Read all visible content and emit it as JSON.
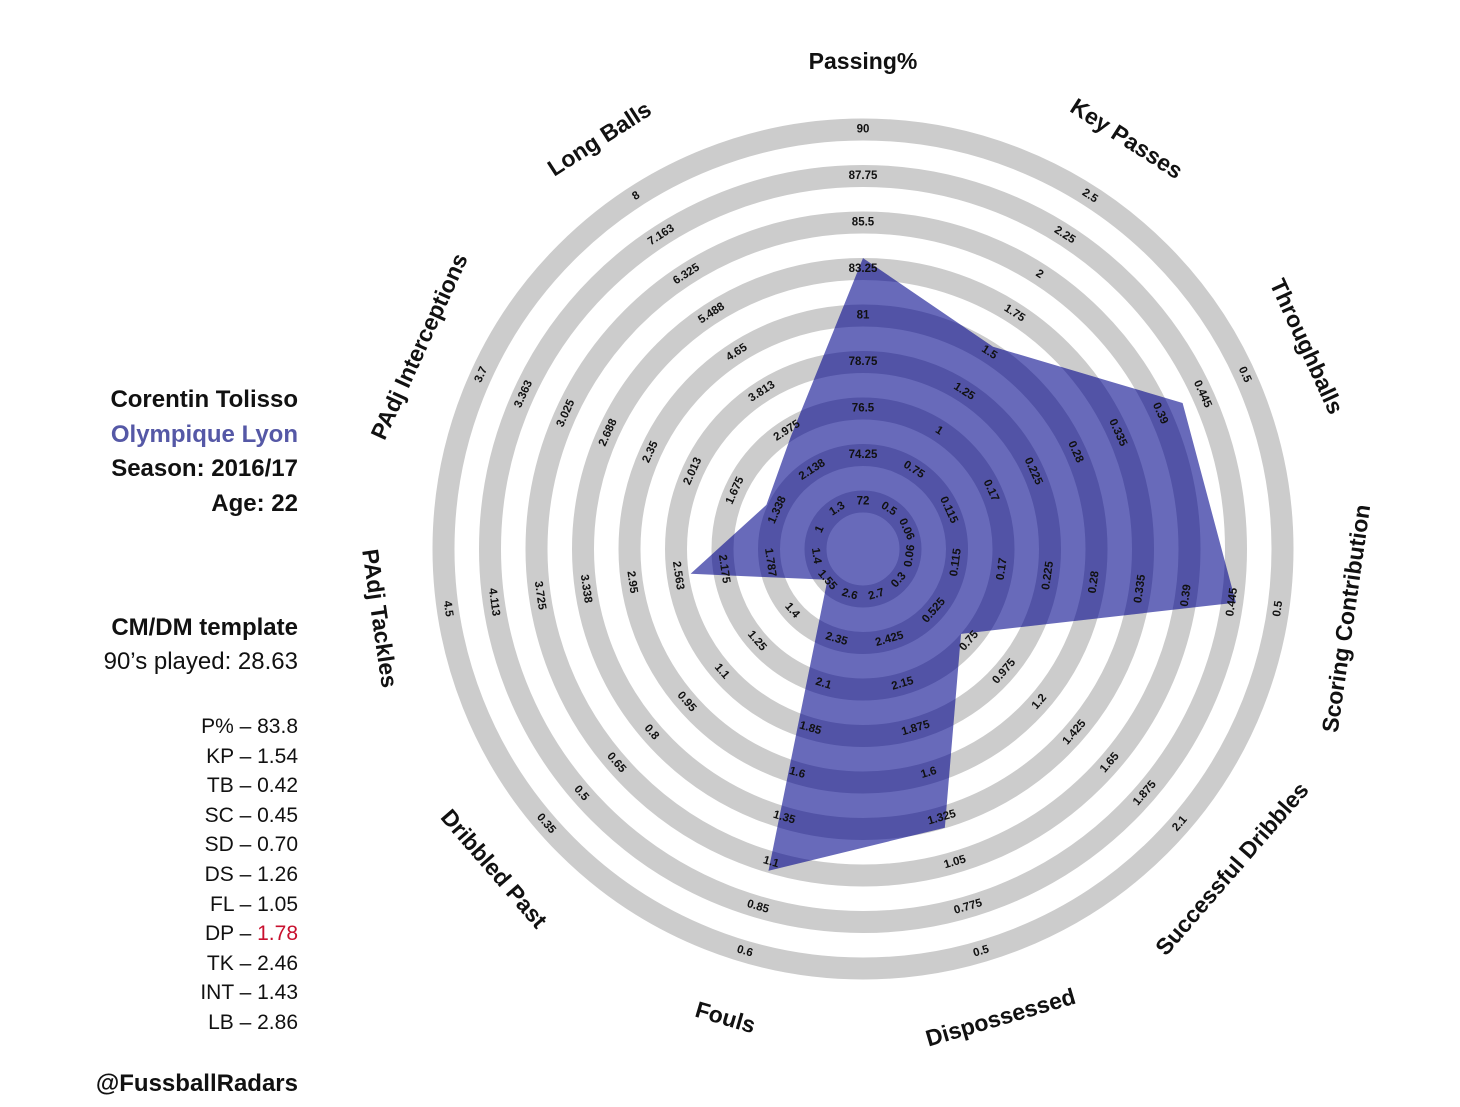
{
  "player": {
    "name": "Corentin Tolisso",
    "club": "Olympique Lyon",
    "season": "Season: 2016/17",
    "age": "Age: 22",
    "template": "CM/DM template",
    "played": "90’s played: 28.63",
    "handle": "@FussballRadars"
  },
  "stats": [
    {
      "code": "P%",
      "value": "83.8"
    },
    {
      "code": "KP",
      "value": "1.54"
    },
    {
      "code": "TB",
      "value": "0.42"
    },
    {
      "code": "SC",
      "value": "0.45"
    },
    {
      "code": "SD",
      "value": "0.70"
    },
    {
      "code": "DS",
      "value": "1.26"
    },
    {
      "code": "FL",
      "value": "1.05"
    },
    {
      "code": "DP",
      "value": "1.78",
      "highlight": true
    },
    {
      "code": "TK",
      "value": "2.46"
    },
    {
      "code": "INT",
      "value": "1.43"
    },
    {
      "code": "LB",
      "value": "2.86"
    }
  ],
  "colors": {
    "fill": "#4b4ead",
    "ring": "#cccccc",
    "club": "#5558a6",
    "highlight": "#c8102e"
  },
  "chart_data": {
    "type": "radar",
    "axes": [
      {
        "name": "Passing%",
        "ticks": [
          "72",
          "74.25",
          "76.5",
          "78.75",
          "81",
          "83.25",
          "85.5",
          "87.75",
          "90"
        ],
        "value": 83.8,
        "inverted": false
      },
      {
        "name": "Key Passes",
        "ticks": [
          "0.5",
          "0.75",
          "1",
          "1.25",
          "1.5",
          "1.75",
          "2",
          "2.25",
          "2.5"
        ],
        "value": 1.54,
        "inverted": false
      },
      {
        "name": "Throughballs",
        "ticks": [
          "0.06",
          "0.115",
          "0.17",
          "0.225",
          "0.28",
          "0.335",
          "0.39",
          "0.445",
          "0.5"
        ],
        "value": 0.42,
        "inverted": false
      },
      {
        "name": "Scoring Contribution",
        "ticks": [
          "0.06",
          "0.115",
          "0.17",
          "0.225",
          "0.28",
          "0.335",
          "0.39",
          "0.445",
          "0.5"
        ],
        "value": 0.45,
        "inverted": false
      },
      {
        "name": "Successful Dribbles",
        "ticks": [
          "0.3",
          "0.525",
          "0.75",
          "0.975",
          "1.2",
          "1.425",
          "1.65",
          "1.875",
          "2.1"
        ],
        "value": 0.7,
        "inverted": false
      },
      {
        "name": "Dispossessed",
        "ticks": [
          "2.7",
          "2.425",
          "2.15",
          "1.875",
          "1.6",
          "1.325",
          "1.05",
          "0.775",
          "0.5"
        ],
        "value": 1.26,
        "inverted": true
      },
      {
        "name": "Fouls",
        "ticks": [
          "2.6",
          "2.35",
          "2.1",
          "1.85",
          "1.6",
          "1.35",
          "1.1",
          "0.85",
          "0.6"
        ],
        "value": 1.05,
        "inverted": true
      },
      {
        "name": "Dribbled Past",
        "ticks": [
          "1.55",
          "1.4",
          "1.25",
          "1.1",
          "0.95",
          "0.8",
          "0.65",
          "0.5",
          "0.35"
        ],
        "value": 1.78,
        "inverted": true
      },
      {
        "name": "PAdj Tackles",
        "ticks": [
          "1.4",
          "1.787",
          "2.175",
          "2.563",
          "2.95",
          "3.338",
          "3.725",
          "4.113",
          "4.5"
        ],
        "value": 2.46,
        "inverted": false
      },
      {
        "name": "PAdj Interceptions",
        "ticks": [
          "1",
          "1.338",
          "1.675",
          "2.013",
          "2.35",
          "2.688",
          "3.025",
          "3.363",
          "3.7"
        ],
        "value": 1.43,
        "inverted": false
      },
      {
        "name": "Long Balls",
        "ticks": [
          "1.3",
          "2.138",
          "2.975",
          "3.813",
          "4.65",
          "5.488",
          "6.325",
          "7.163",
          "8"
        ],
        "value": 2.86,
        "inverted": false
      }
    ]
  }
}
